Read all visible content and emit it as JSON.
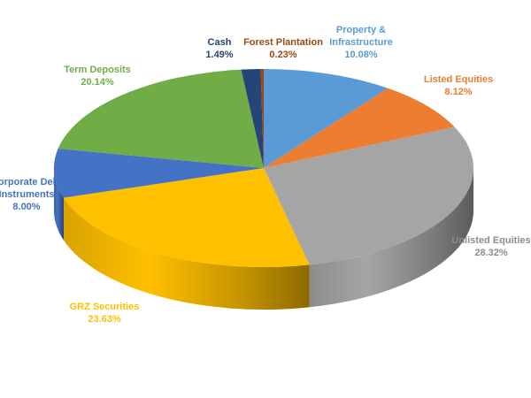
{
  "chart_data": {
    "type": "pie3d",
    "categories": [
      "Property & Infrastructure",
      "Listed Equities",
      "Unlisted Equities",
      "GRZ Securities",
      "Corporate Debt Instruments",
      "Term Deposits",
      "Cash",
      "Forest Plantation"
    ],
    "values": [
      10.08,
      8.12,
      28.32,
      23.63,
      8.0,
      20.14,
      1.49,
      0.23
    ],
    "value_labels": [
      "10.08%",
      "8.12%",
      "28.32%",
      "23.63%",
      "8.00%",
      "20.14%",
      "1.49%",
      "0.23%"
    ],
    "colors": [
      "#5b9bd5",
      "#ed7d31",
      "#a5a5a5",
      "#ffc000",
      "#4472c4",
      "#70ad47",
      "#264478",
      "#9e480e"
    ],
    "label_colors": [
      "#5b9bd5",
      "#ed7d31",
      "#8c8c8c",
      "#ffc000",
      "#4472c4",
      "#70ad47",
      "#264478",
      "#9e480e"
    ]
  }
}
